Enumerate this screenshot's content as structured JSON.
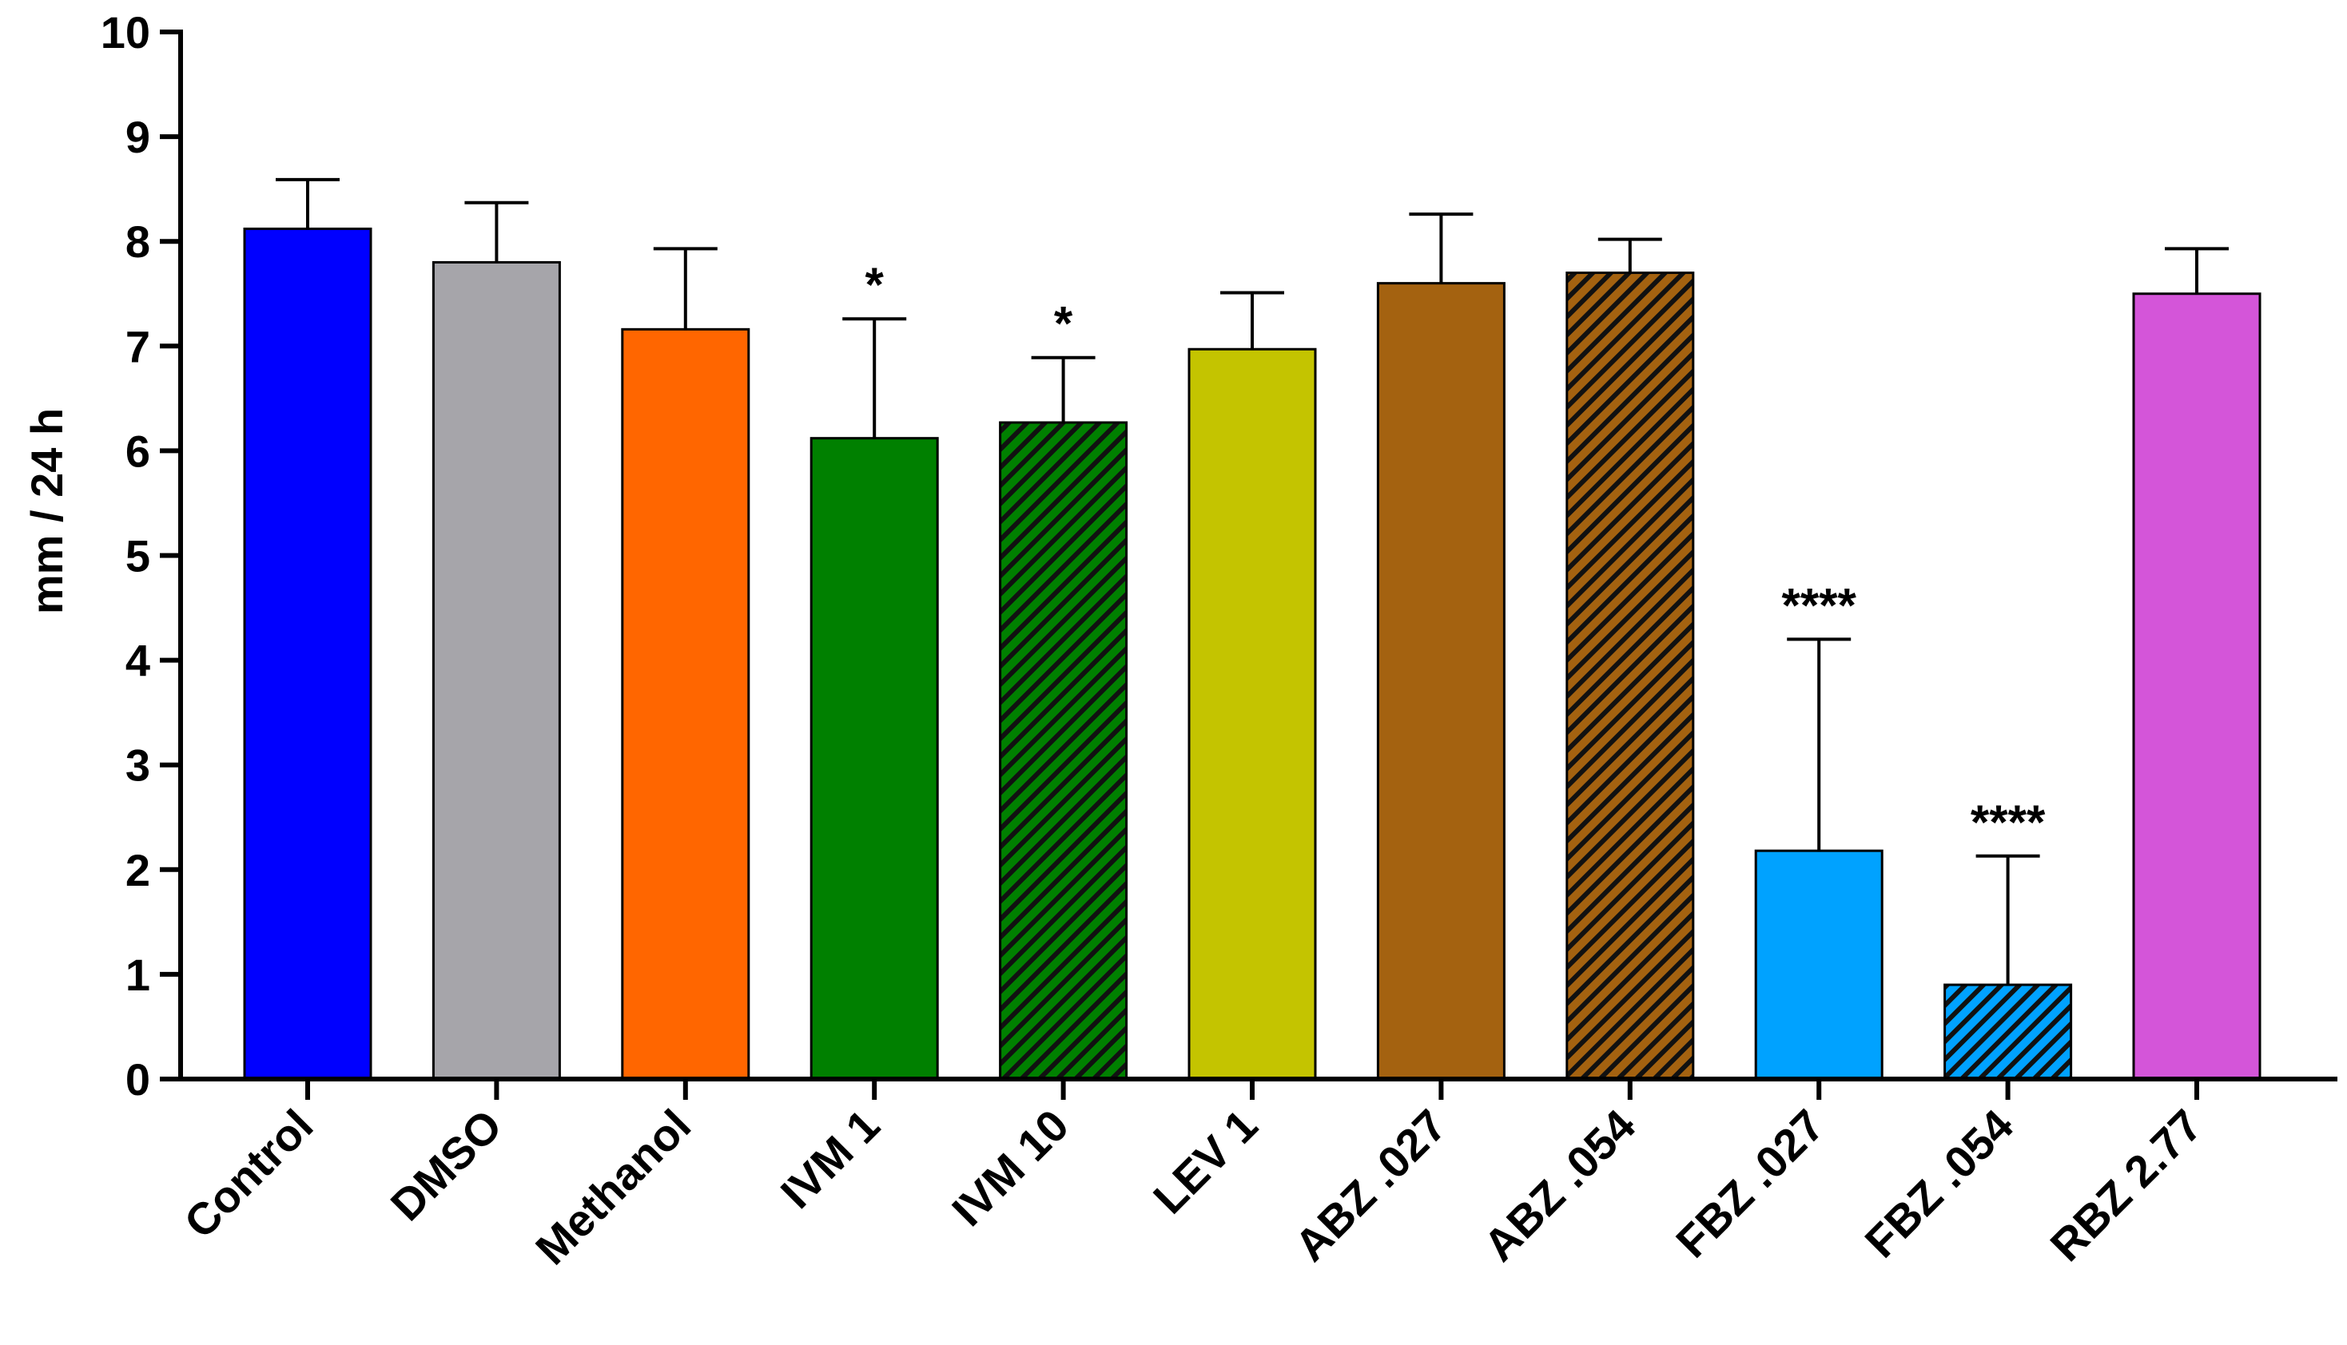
{
  "chart_data": {
    "type": "bar",
    "title": "",
    "xlabel": "",
    "ylabel": "mm / 24 h",
    "ylim": [
      0,
      10
    ],
    "yticks": [
      "0",
      "1",
      "2",
      "3",
      "4",
      "5",
      "6",
      "7",
      "8",
      "9",
      "10"
    ],
    "grid": false,
    "categories": [
      "Control",
      "DMSO",
      "Methanol",
      "IVM 1",
      "IVM 10",
      "LEV 1",
      "ABZ .027",
      "ABZ .054",
      "FBZ .027",
      "FBZ .054",
      "RBZ 2.77"
    ],
    "values": [
      8.12,
      7.8,
      7.16,
      6.12,
      6.27,
      6.97,
      7.6,
      7.7,
      2.18,
      0.9,
      7.5
    ],
    "errors": [
      0.47,
      0.57,
      0.77,
      1.14,
      0.62,
      0.54,
      0.66,
      0.32,
      2.02,
      1.23,
      0.43
    ],
    "significance": [
      "",
      "",
      "",
      "*",
      "*",
      "",
      "",
      "",
      "****",
      "****",
      ""
    ],
    "colors": [
      "#0000ff",
      "#a6a5aa",
      "#ff6600",
      "#008000",
      "#008000",
      "#c4c400",
      "#a46210",
      "#a46210",
      "#00a2ff",
      "#00a2ff",
      "#d455d9"
    ],
    "hatched": [
      false,
      false,
      false,
      false,
      true,
      false,
      false,
      true,
      false,
      true,
      false
    ]
  }
}
